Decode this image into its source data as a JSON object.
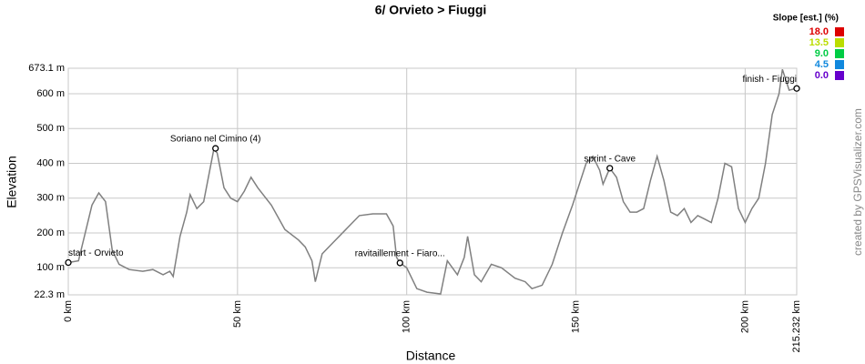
{
  "chart_data": {
    "type": "line",
    "title": "6/ Orvieto > Fiuggi",
    "x_label": "Distance",
    "y_label": "Elevation",
    "credit": "created by GPSVisualizer.com",
    "grid": true,
    "xlim": [
      0,
      215.232
    ],
    "ylim": [
      22.3,
      673.1
    ],
    "xticks": [
      {
        "value": 0,
        "label": "0 km"
      },
      {
        "value": 50,
        "label": "50 km"
      },
      {
        "value": 100,
        "label": "100 km"
      },
      {
        "value": 150,
        "label": "150 km"
      },
      {
        "value": 200,
        "label": "200 km"
      },
      {
        "value": 215.232,
        "label": "215.232 km"
      }
    ],
    "yticks": [
      {
        "value": 22.3,
        "label": "22.3 m"
      },
      {
        "value": 100,
        "label": "100 m"
      },
      {
        "value": 200,
        "label": "200 m"
      },
      {
        "value": 300,
        "label": "300 m"
      },
      {
        "value": 400,
        "label": "400 m"
      },
      {
        "value": 500,
        "label": "500 m"
      },
      {
        "value": 600,
        "label": "600 m"
      },
      {
        "value": 673.1,
        "label": "673.1 m"
      }
    ],
    "x": [
      0,
      3,
      5,
      7,
      9,
      11,
      13,
      15,
      18,
      22,
      25,
      28,
      30,
      31,
      33,
      35,
      36,
      38,
      40,
      42,
      43,
      44,
      46,
      48,
      50,
      52,
      54,
      56,
      60,
      64,
      68,
      70,
      72,
      73,
      75,
      78,
      82,
      86,
      90,
      94,
      96,
      97,
      98,
      100,
      103,
      106,
      110,
      112,
      115,
      117,
      118,
      120,
      122,
      125,
      128,
      132,
      135,
      137,
      140,
      143,
      146,
      149,
      151,
      153,
      155,
      157,
      158,
      160,
      162,
      164,
      166,
      168,
      170,
      172,
      174,
      176,
      178,
      180,
      182,
      184,
      186,
      188,
      190,
      192,
      194,
      196,
      198,
      200,
      202,
      204,
      206,
      208,
      210,
      211,
      212,
      213,
      215
    ],
    "series": [
      {
        "color": "#808080",
        "values": [
          115,
          120,
          200,
          280,
          315,
          290,
          150,
          110,
          95,
          90,
          95,
          80,
          90,
          75,
          190,
          260,
          310,
          270,
          290,
          390,
          440,
          430,
          330,
          300,
          290,
          320,
          360,
          330,
          280,
          210,
          180,
          160,
          120,
          60,
          140,
          170,
          210,
          250,
          255,
          255,
          220,
          130,
          114,
          100,
          40,
          30,
          25,
          120,
          80,
          130,
          190,
          80,
          60,
          110,
          100,
          70,
          60,
          40,
          50,
          110,
          200,
          280,
          340,
          400,
          420,
          380,
          340,
          386,
          360,
          290,
          260,
          260,
          270,
          350,
          420,
          350,
          260,
          250,
          270,
          230,
          250,
          240,
          230,
          300,
          400,
          390,
          270,
          230,
          270,
          300,
          400,
          540,
          600,
          670,
          640,
          610,
          615
        ]
      }
    ],
    "annotations": [
      {
        "x": 0,
        "y": 115,
        "label": "start - Orvieto"
      },
      {
        "x": 43.5,
        "y": 443,
        "label": "Soriano nel Cimino (4)"
      },
      {
        "x": 98,
        "y": 114,
        "label": "ravitaillement - Fiaro..."
      },
      {
        "x": 160,
        "y": 386,
        "label": "sprint - Cave"
      },
      {
        "x": 215.232,
        "y": 615,
        "label": "finish - Fiuggi"
      }
    ],
    "legend": {
      "title": "Slope [est.] (%)",
      "items": [
        {
          "value": 18.0,
          "label": "18.0",
          "color": "#dd0000"
        },
        {
          "value": 13.5,
          "label": "13.5",
          "color": "#bbdd00"
        },
        {
          "value": 9.0,
          "label": "9.0",
          "color": "#00cc44"
        },
        {
          "value": 4.5,
          "label": "4.5",
          "color": "#1188dd"
        },
        {
          "value": 0.0,
          "label": "0.0",
          "color": "#6600cc"
        }
      ]
    }
  }
}
